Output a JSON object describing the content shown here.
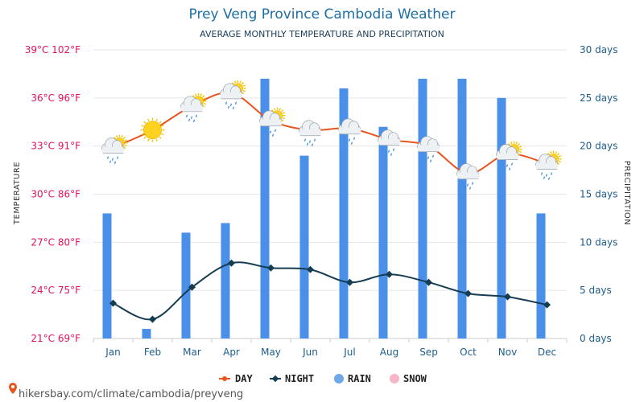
{
  "chart_data": {
    "type": "bar+line",
    "title": "Prey Veng Province Cambodia Weather",
    "subtitle": "AVERAGE MONTHLY TEMPERATURE AND PRECIPITATION",
    "ylabel_left": "TEMPERATURE",
    "ylabel_right": "PRECIPITATION",
    "categories": [
      "Jan",
      "Feb",
      "Mar",
      "Apr",
      "May",
      "Jun",
      "Jul",
      "Aug",
      "Sep",
      "Oct",
      "Nov",
      "Dec"
    ],
    "y_left_ticks": [
      "39°C 102°F",
      "36°C 96°F",
      "33°C 91°F",
      "30°C 86°F",
      "27°C 80°F",
      "24°C 75°F",
      "21°C 69°F"
    ],
    "y_left_range": [
      21,
      39
    ],
    "y_right_ticks": [
      "30 days",
      "25 days",
      "20 days",
      "15 days",
      "10 days",
      "5 days",
      "0 days"
    ],
    "y_right_range": [
      0,
      30
    ],
    "series": [
      {
        "name": "DAY",
        "unit": "°C",
        "color": "#e8541e",
        "values": [
          32.9,
          34.0,
          35.5,
          36.3,
          34.6,
          34.0,
          34.1,
          33.4,
          33.0,
          31.3,
          32.5,
          31.9
        ]
      },
      {
        "name": "NIGHT",
        "unit": "°C",
        "color": "#163c52",
        "values": [
          23.2,
          22.2,
          24.2,
          25.7,
          25.4,
          25.3,
          24.5,
          25.0,
          24.5,
          23.8,
          23.6,
          23.1
        ]
      },
      {
        "name": "RAIN",
        "unit": "days",
        "color": "#4a90e8",
        "values": [
          13,
          1,
          11,
          12,
          27,
          19,
          26,
          22,
          27,
          27,
          25,
          13
        ]
      },
      {
        "name": "SNOW",
        "unit": "days",
        "color": "#f7b6c8",
        "values": [
          0,
          0,
          0,
          0,
          0,
          0,
          0,
          0,
          0,
          0,
          0,
          0
        ]
      }
    ],
    "icons": [
      "partly-cloudy-rain-icon",
      "sun-icon",
      "partly-cloudy-rain-icon",
      "partly-cloudy-rain-icon",
      "partly-cloudy-rain-icon",
      "cloud-rain-icon",
      "cloud-rain-icon",
      "cloud-rain-icon",
      "cloud-rain-icon",
      "cloud-rain-icon",
      "partly-cloudy-rain-icon",
      "partly-cloudy-rain-icon"
    ],
    "grid": true,
    "legend_position": "bottom-center"
  },
  "source": "hikersbay.com/climate/cambodia/preyveng",
  "colors": {
    "title": "#1d6fa5",
    "left_ticks": "#e0115f",
    "right_ticks": "#1d5d8c"
  }
}
